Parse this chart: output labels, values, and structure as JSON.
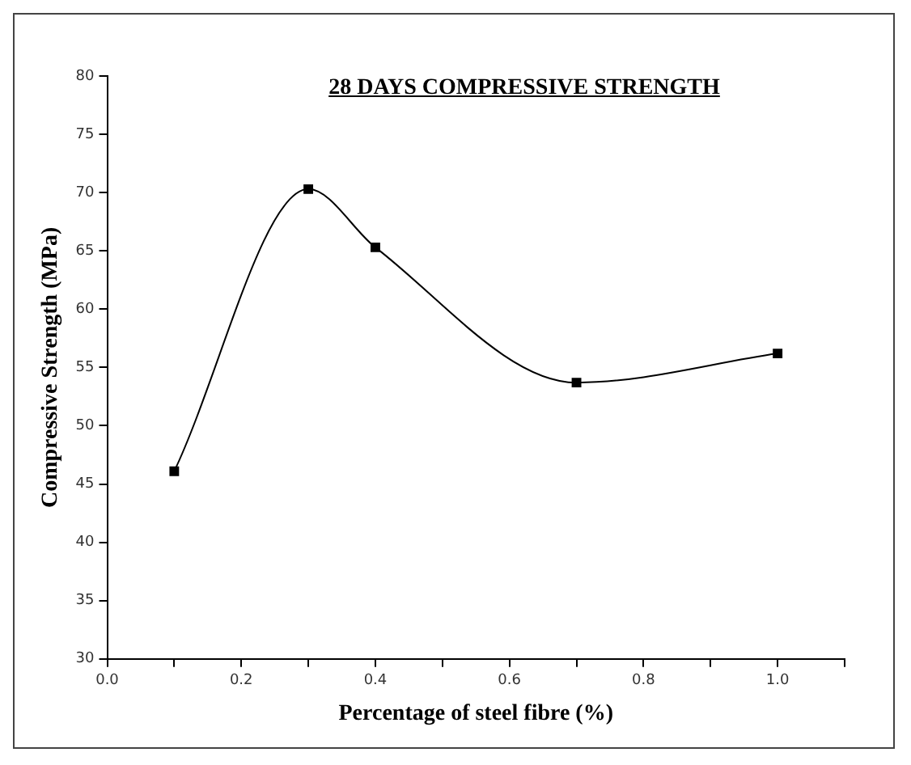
{
  "chart_data": {
    "type": "line",
    "title": "28 DAYS COMPRESSIVE STRENGTH",
    "xlabel": "Percentage of steel fibre (%)",
    "ylabel": "Compressive Strength (MPa)",
    "x": [
      0.1,
      0.3,
      0.4,
      0.7,
      1.0
    ],
    "series": [
      {
        "color": "#000000",
        "values": [
          46.1,
          70.3,
          65.3,
          53.7,
          56.2
        ]
      }
    ],
    "xlim": [
      0,
      1.1
    ],
    "xticks": [
      {
        "value": 0,
        "label": "0.0"
      },
      {
        "value": 0.1,
        "label": null
      },
      {
        "value": 0.2,
        "label": "0.2"
      },
      {
        "value": 0.3,
        "label": null
      },
      {
        "value": 0.4,
        "label": "0.4"
      },
      {
        "value": 0.5,
        "label": null
      },
      {
        "value": 0.6,
        "label": "0.6"
      },
      {
        "value": 0.7,
        "label": null
      },
      {
        "value": 0.8,
        "label": "0.8"
      },
      {
        "value": 0.9,
        "label": null
      },
      {
        "value": 1.0,
        "label": "1.0"
      },
      {
        "value": 1.1,
        "label": null
      }
    ],
    "ylim": [
      30,
      80
    ],
    "yticks": [
      30,
      35,
      40,
      45,
      50,
      55,
      60,
      65,
      70,
      75,
      80
    ],
    "marker": "square",
    "grid": false,
    "legend": false
  }
}
